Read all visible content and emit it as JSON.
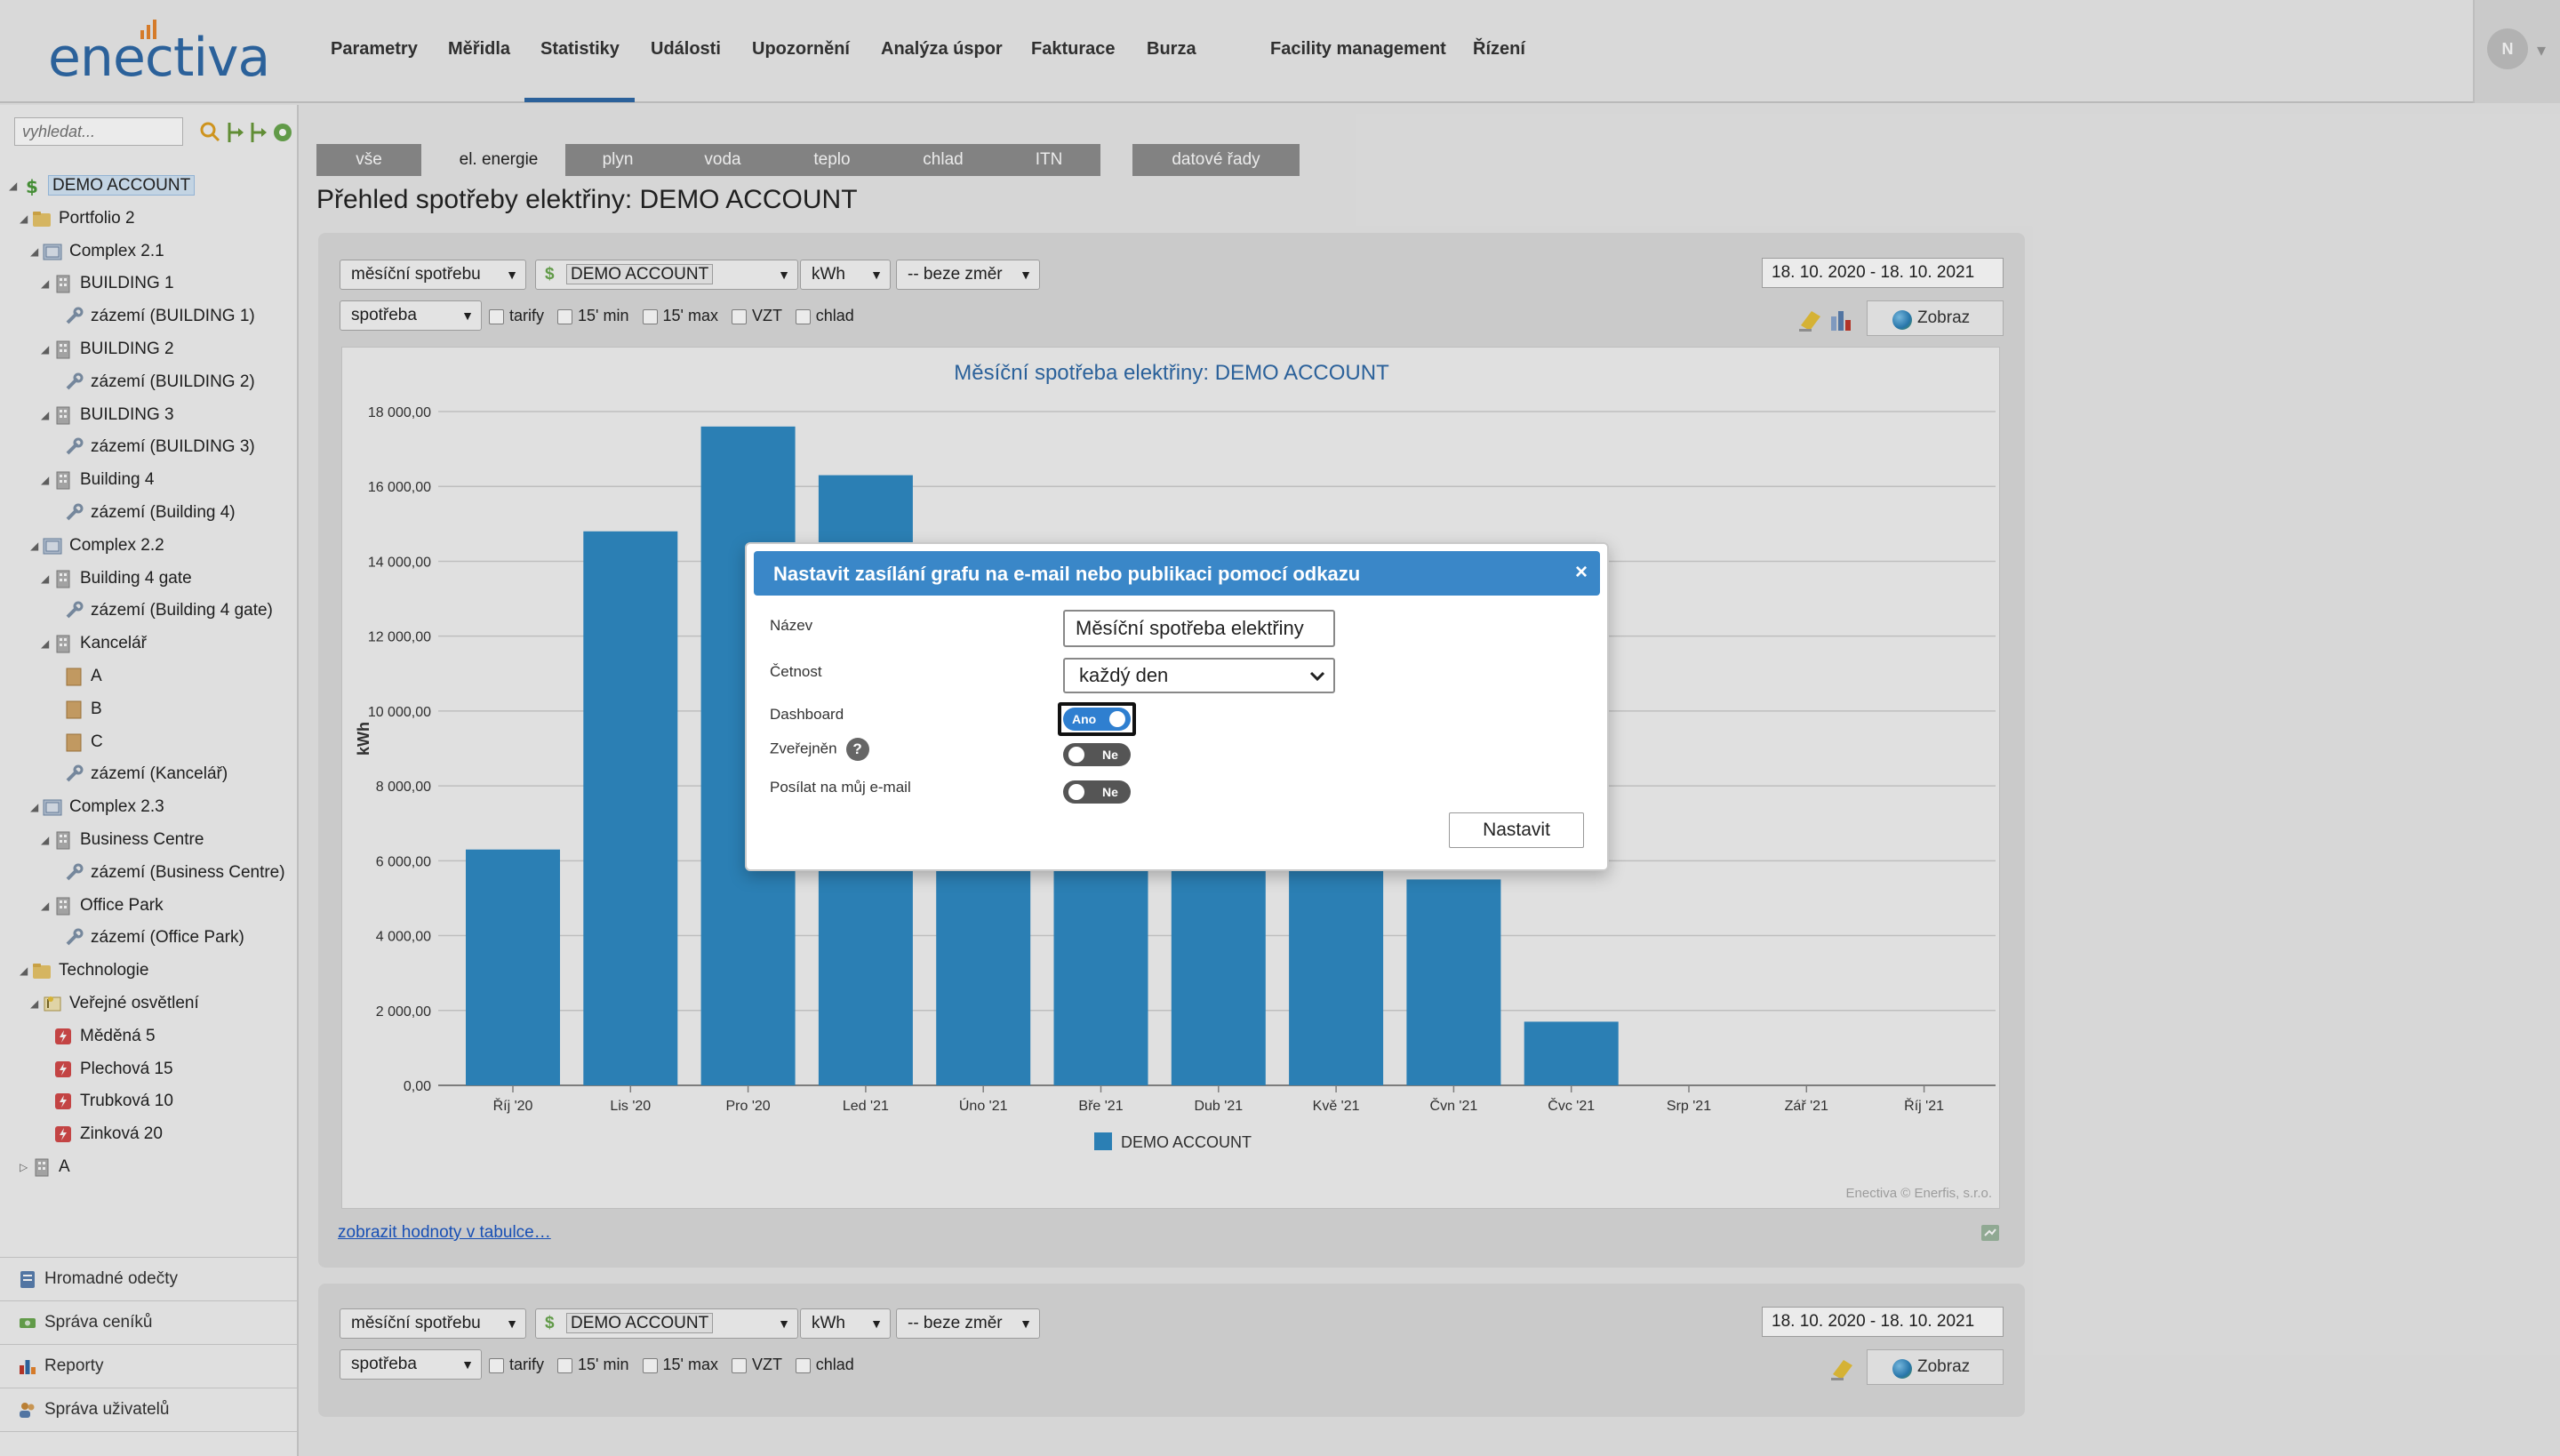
{
  "header": {
    "logo_text": "enectiva",
    "nav": [
      {
        "label": "Parametry"
      },
      {
        "label": "Měřidla"
      },
      {
        "label": "Statistiky"
      },
      {
        "label": "Události"
      },
      {
        "label": "Upozornění"
      },
      {
        "label": "Analýza úspor"
      },
      {
        "label": "Fakturace"
      },
      {
        "label": "Burza"
      },
      {
        "label": "Facility management"
      },
      {
        "label": "Řízení"
      }
    ],
    "active_nav": "Statistiky",
    "user_initial": "N"
  },
  "sidebar": {
    "search_placeholder": "vyhledat...",
    "tree": [
      {
        "label": "DEMO ACCOUNT",
        "icon": "dollar-icon"
      },
      {
        "label": "Portfolio 2",
        "icon": "folder-icon"
      },
      {
        "label": "Complex 2.1",
        "icon": "complex-icon"
      },
      {
        "label": "BUILDING 1",
        "icon": "building-icon"
      },
      {
        "label": "zázemí (BUILDING 1)",
        "icon": "wrench-icon"
      },
      {
        "label": "BUILDING 2",
        "icon": "building-icon"
      },
      {
        "label": "zázemí (BUILDING 2)",
        "icon": "wrench-icon"
      },
      {
        "label": "BUILDING 3",
        "icon": "building-icon"
      },
      {
        "label": "zázemí (BUILDING 3)",
        "icon": "wrench-icon"
      },
      {
        "label": "Building 4",
        "icon": "building-icon"
      },
      {
        "label": "zázemí (Building 4)",
        "icon": "wrench-icon"
      },
      {
        "label": "Complex 2.2",
        "icon": "complex-icon"
      },
      {
        "label": "Building 4 gate",
        "icon": "building-icon"
      },
      {
        "label": "zázemí (Building 4 gate)",
        "icon": "wrench-icon"
      },
      {
        "label": "Kancelář",
        "icon": "building-icon"
      },
      {
        "label": "A",
        "icon": "room-icon"
      },
      {
        "label": "B",
        "icon": "room-icon"
      },
      {
        "label": "C",
        "icon": "room-icon"
      },
      {
        "label": "zázemí (Kancelář)",
        "icon": "wrench-icon"
      },
      {
        "label": "Complex 2.3",
        "icon": "complex-icon"
      },
      {
        "label": "Business Centre",
        "icon": "building-icon"
      },
      {
        "label": "zázemí (Business Centre)",
        "icon": "wrench-icon"
      },
      {
        "label": "Office Park",
        "icon": "building-icon"
      },
      {
        "label": "zázemí (Office Park)",
        "icon": "wrench-icon"
      },
      {
        "label": "Technologie",
        "icon": "folder-icon"
      },
      {
        "label": "Veřejné osvětlení",
        "icon": "lamp-icon"
      },
      {
        "label": "Měděná 5",
        "icon": "meter-icon"
      },
      {
        "label": "Plechová 15",
        "icon": "meter-icon"
      },
      {
        "label": "Trubková 10",
        "icon": "meter-icon"
      },
      {
        "label": "Zinková 20",
        "icon": "meter-icon"
      },
      {
        "label": "A",
        "icon": "building-icon"
      }
    ],
    "bottom_links": [
      {
        "label": "Hromadné odečty",
        "icon": "clipboard-icon"
      },
      {
        "label": "Správa ceníků",
        "icon": "price-icon"
      },
      {
        "label": "Reporty",
        "icon": "report-icon"
      },
      {
        "label": "Správa uživatelů",
        "icon": "users-icon"
      }
    ]
  },
  "tabs": [
    {
      "label": "vše"
    },
    {
      "label": "el. energie"
    },
    {
      "label": "plyn"
    },
    {
      "label": "voda"
    },
    {
      "label": "teplo"
    },
    {
      "label": "chlad"
    },
    {
      "label": "ITN"
    },
    {
      "label": "datové řady"
    }
  ],
  "active_tab": "el. energie",
  "page_title": "Přehled spotřeby elektřiny: DEMO ACCOUNT",
  "controls": {
    "period": "měsíční spotřebu",
    "account": "DEMO ACCOUNT",
    "unit": "kWh",
    "direction": "-- beze změr",
    "date_range": "18. 10. 2020 - 18. 10. 2021",
    "measure": "spotřeba",
    "checkboxes": [
      "tarify",
      "15' min",
      "15' max",
      "VZT",
      "chlad"
    ],
    "show_button": "Zobraz"
  },
  "table_link": "zobrazit hodnoty v tabulce…",
  "chart_data": {
    "type": "bar",
    "title": "Měsíční spotřeba elektřiny: DEMO ACCOUNT",
    "ylabel": "kWh",
    "xlabel": "",
    "ylim": [
      0,
      18000
    ],
    "yticks": [
      "0,00",
      "2 000,00",
      "4 000,00",
      "6 000,00",
      "8 000,00",
      "10 000,00",
      "12 000,00",
      "14 000,00",
      "16 000,00",
      "18 000,00"
    ],
    "categories": [
      "Říj '20",
      "Lis '20",
      "Pro '20",
      "Led '21",
      "Úno '21",
      "Bře '21",
      "Dub '21",
      "Kvě '21",
      "Čvn '21",
      "Čvc '21",
      "Srp '21",
      "Zář '21",
      "Říj '21"
    ],
    "series": [
      {
        "name": "DEMO ACCOUNT",
        "color": "#2f8ac4",
        "values": [
          6300,
          14800,
          17600,
          16300,
          6000,
          6000,
          6000,
          6000,
          5500,
          1700,
          0,
          0,
          0
        ]
      }
    ],
    "legend": "bottom-center",
    "credit": "Enectiva © Enerfis, s.r.o.",
    "grid": true
  },
  "modal": {
    "title": "Nastavit zasílání grafu na e-mail nebo publikaci pomocí odkazu",
    "close": "×",
    "name_label": "Název",
    "name_value": "Měsíční spotřeba elektřiny",
    "frequency_label": "Četnost",
    "frequency_value": "každý den",
    "dashboard_label": "Dashboard",
    "dashboard_value": "Ano",
    "published_label": "Zveřejněn",
    "published_value": "Ne",
    "help": "?",
    "email_label": "Posílat na můj e-mail",
    "email_value": "Ne",
    "submit": "Nastavit"
  }
}
